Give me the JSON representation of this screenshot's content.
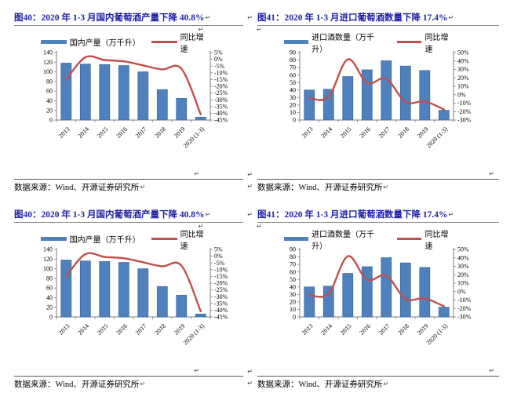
{
  "page": {
    "background": "#FFFFFF"
  },
  "marks": {
    "pilcrow": "↵"
  },
  "colors": {
    "title_blue": "#1E1EA8",
    "bar_blue": "#4F81BD",
    "bar_border": "#3B69A5",
    "line_red": "#C0504D",
    "rule_gray": "#8C8C8C",
    "source_rule": "#595959",
    "axis_gray": "#7F7F7F",
    "text_black": "#000000"
  },
  "figures": [
    {
      "title": "图40：2020 年 1-3 月国内葡萄酒产量下降 40.8%",
      "legend_bar": "国内产量（万千升）",
      "legend_line": "同比增速",
      "source": "数据来源：Wind、开源证券研究所"
    },
    {
      "title": "图41：2020 年 1-3 月进口葡萄酒数量下降 17.4%",
      "legend_bar": "进口酒数量（万千升）",
      "legend_line": "同比增速",
      "source": "数据来源：Wind、开源证券研究所"
    },
    {
      "title": "图40：2020 年 1-3 月国内葡萄酒产量下降 40.8%",
      "legend_bar": "国内产量（万千升）",
      "legend_line": "同比增速",
      "source": "数据来源：Wind、开源证券研究所"
    },
    {
      "title": "图41：2020 年 1-3 月进口葡萄酒数量下降 17.4%",
      "legend_bar": "进口酒数量（万千升）",
      "legend_line": "同比增速",
      "source": "数据来源：Wind、开源证券研究所"
    }
  ],
  "chart_data": [
    {
      "type": "bar",
      "title": "图40：2020 年 1-3 月国内葡萄酒产量下降 40.8%",
      "categories": [
        "2013",
        "2014",
        "2015",
        "2016",
        "2017",
        "2018",
        "2019",
        "2020 (1-3)"
      ],
      "series": [
        {
          "name": "国内产量（万千升）",
          "type": "bar",
          "axis": "left",
          "values": [
            118,
            116,
            115,
            113,
            100,
            63,
            45,
            6
          ]
        },
        {
          "name": "同比增速",
          "type": "line",
          "axis": "right",
          "values": [
            -15,
            1.5,
            -0.5,
            -1.5,
            -4.5,
            -7.5,
            -7,
            -40.8
          ]
        }
      ],
      "left_axis": {
        "min": 0,
        "max": 140,
        "ticks": [
          "140",
          "120",
          "100",
          "80",
          "60",
          "40",
          "20",
          "0"
        ]
      },
      "right_axis": {
        "min": -45,
        "max": 5,
        "ticks": [
          "5%",
          "0%",
          "-5%",
          "-10%",
          "-15%",
          "-20%",
          "-25%",
          "-30%",
          "-35%",
          "-40%",
          "-45%"
        ]
      },
      "grid": false,
      "legend_position": "top"
    },
    {
      "type": "bar",
      "title": "图41：2020 年 1-3 月进口葡萄酒数量下降 17.4%",
      "categories": [
        "2013",
        "2014",
        "2015",
        "2016",
        "2017",
        "2018",
        "2019",
        "2020 (1-3)"
      ],
      "series": [
        {
          "name": "进口酒数量（万千升）",
          "type": "bar",
          "axis": "left",
          "values": [
            40,
            41,
            58,
            67,
            79,
            72,
            66,
            13
          ]
        },
        {
          "name": "同比增速",
          "type": "line",
          "axis": "right",
          "values": [
            -4,
            -2.5,
            42,
            14,
            19,
            -8.5,
            -8,
            -17.4
          ]
        }
      ],
      "left_axis": {
        "min": 0,
        "max": 90,
        "ticks": [
          "90",
          "80",
          "70",
          "60",
          "50",
          "40",
          "30",
          "20",
          "10",
          "0"
        ]
      },
      "right_axis": {
        "min": -30,
        "max": 50,
        "ticks": [
          "50%",
          "40%",
          "30%",
          "20%",
          "10%",
          "0%",
          "-10%",
          "-20%",
          "-30%"
        ]
      },
      "grid": false,
      "legend_position": "top"
    },
    {
      "type": "bar",
      "title": "图40：2020 年 1-3 月国内葡萄酒产量下降 40.8%",
      "categories": [
        "2013",
        "2014",
        "2015",
        "2016",
        "2017",
        "2018",
        "2019",
        "2020 (1-3)"
      ],
      "series": [
        {
          "name": "国内产量（万千升）",
          "type": "bar",
          "axis": "left",
          "values": [
            118,
            116,
            115,
            113,
            100,
            63,
            45,
            6
          ]
        },
        {
          "name": "同比增速",
          "type": "line",
          "axis": "right",
          "values": [
            -15,
            1.5,
            -0.5,
            -1.5,
            -4.5,
            -7.5,
            -7,
            -40.8
          ]
        }
      ],
      "left_axis": {
        "min": 0,
        "max": 140,
        "ticks": [
          "140",
          "120",
          "100",
          "80",
          "60",
          "40",
          "20",
          "0"
        ]
      },
      "right_axis": {
        "min": -45,
        "max": 5,
        "ticks": [
          "5%",
          "0%",
          "-5%",
          "-10%",
          "-15%",
          "-20%",
          "-25%",
          "-30%",
          "-35%",
          "-40%",
          "-45%"
        ]
      },
      "grid": false,
      "legend_position": "top"
    },
    {
      "type": "bar",
      "title": "图41：2020 年 1-3 月进口葡萄酒数量下降 17.4%",
      "categories": [
        "2013",
        "2014",
        "2015",
        "2016",
        "2017",
        "2018",
        "2019",
        "2020 (1-3)"
      ],
      "series": [
        {
          "name": "进口酒数量（万千升）",
          "type": "bar",
          "axis": "left",
          "values": [
            40,
            41,
            58,
            67,
            79,
            72,
            66,
            13
          ]
        },
        {
          "name": "同比增速",
          "type": "line",
          "axis": "right",
          "values": [
            -4,
            -2.5,
            42,
            14,
            19,
            -8.5,
            -8,
            -17.4
          ]
        }
      ],
      "left_axis": {
        "min": 0,
        "max": 90,
        "ticks": [
          "90",
          "80",
          "70",
          "60",
          "50",
          "40",
          "30",
          "20",
          "10",
          "0"
        ]
      },
      "right_axis": {
        "min": -30,
        "max": 50,
        "ticks": [
          "50%",
          "40%",
          "30%",
          "20%",
          "10%",
          "0%",
          "-10%",
          "-20%",
          "-30%"
        ]
      },
      "grid": false,
      "legend_position": "top"
    }
  ]
}
